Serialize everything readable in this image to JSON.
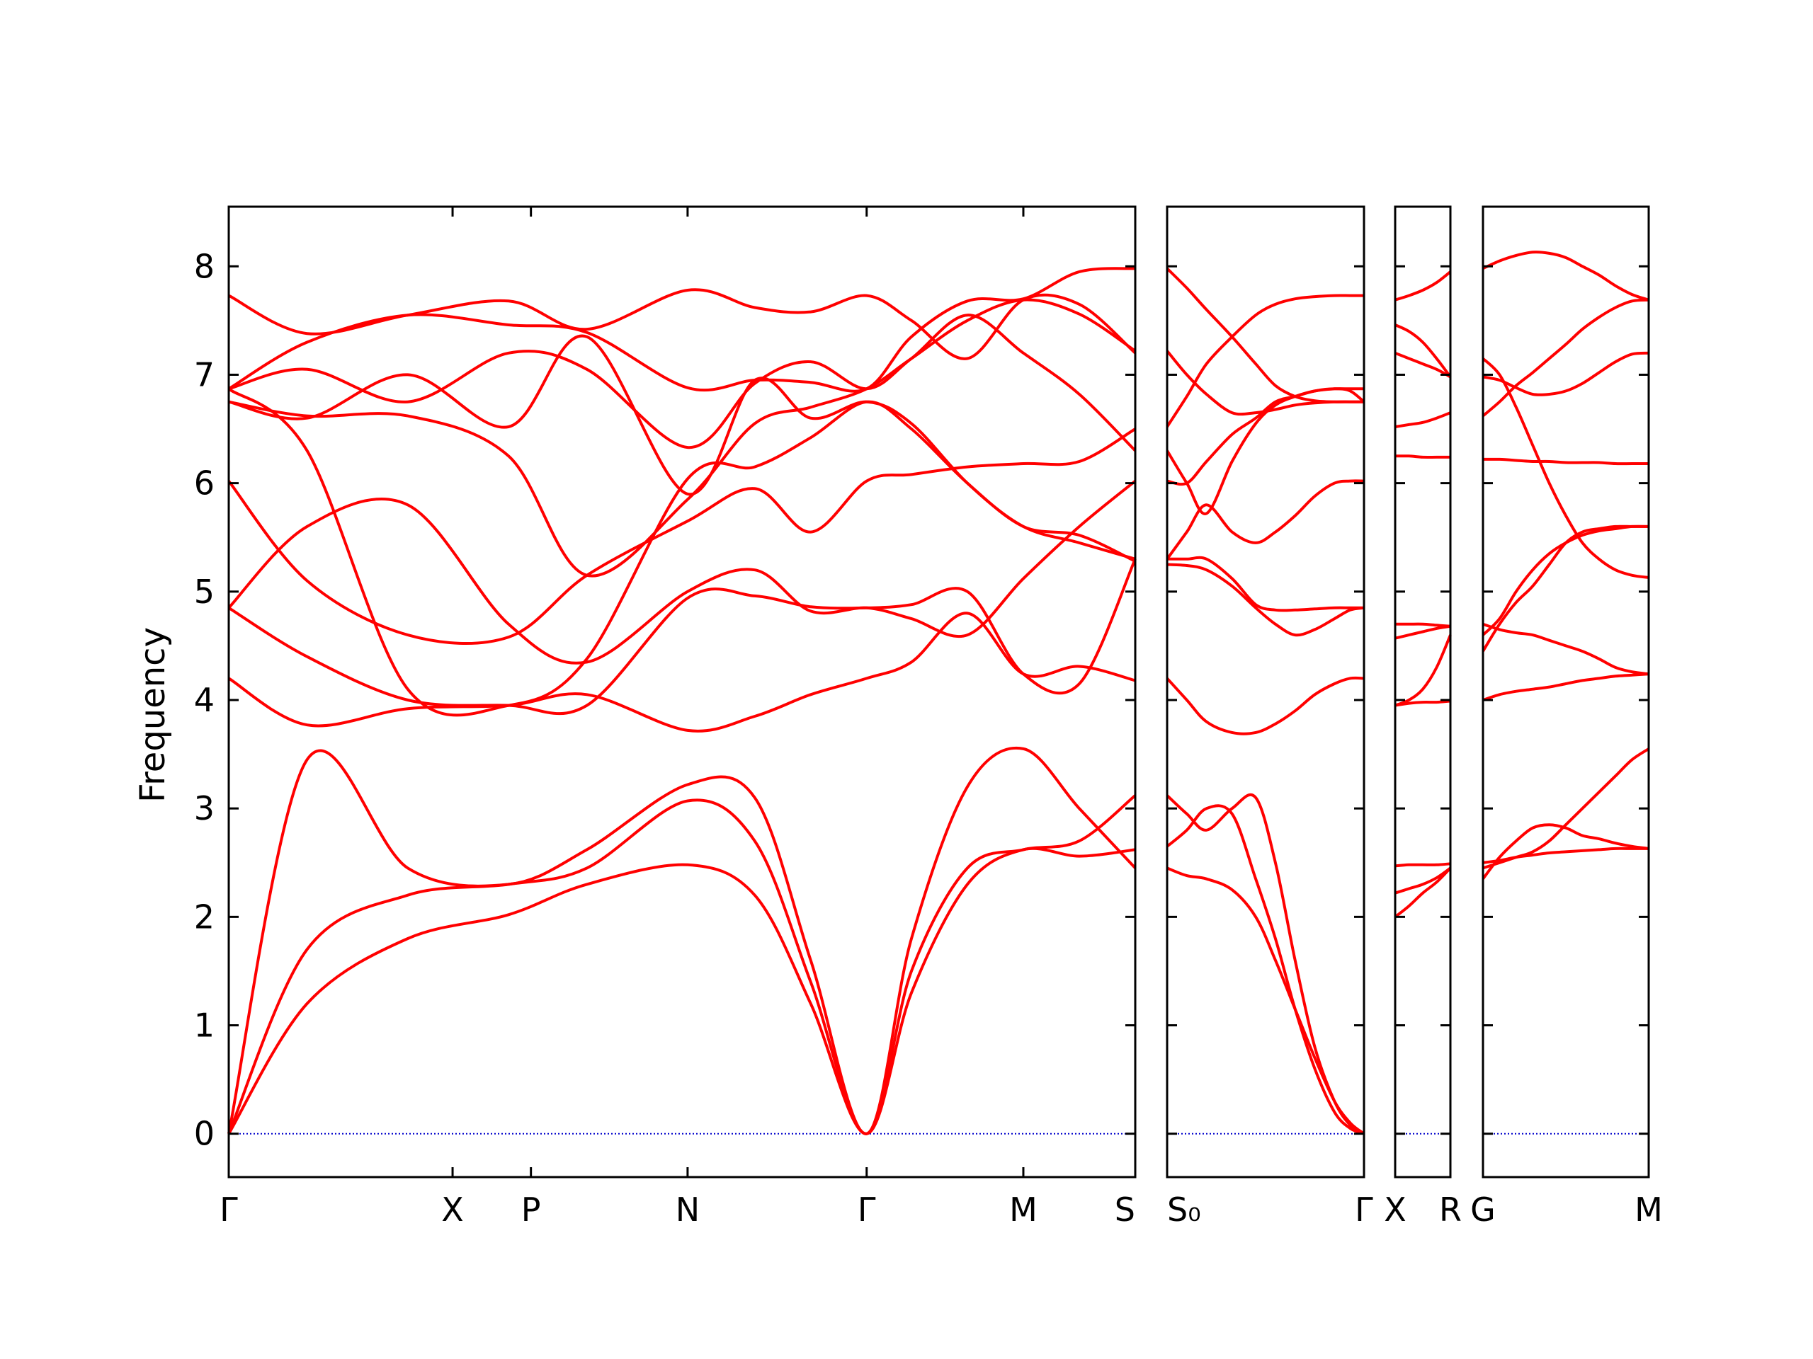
{
  "chart_data": {
    "type": "line",
    "title": "",
    "xlabel": "",
    "ylabel": "Frequency",
    "ylim": [
      -0.4,
      8.55
    ],
    "y_ticks": [
      0,
      1,
      2,
      3,
      4,
      5,
      6,
      7,
      8
    ],
    "grid": false,
    "legend": "none",
    "line_color": "#ff0000",
    "zero_line_color": "#0000cc",
    "panels": [
      {
        "labels": [
          "Γ",
          "X",
          "P",
          "N",
          "Γ",
          "M",
          "S"
        ],
        "label_positions": [
          0,
          1,
          1.35,
          2.05,
          2.85,
          3.55,
          4.05
        ],
        "x_range": [
          0,
          4.05
        ],
        "bands": [
          [
            0,
            0.35,
            0.8,
            1.25,
            1.6,
            2.05,
            2.35,
            2.6,
            2.85,
            3.05,
            3.3,
            3.55,
            3.8,
            4.05
          ],
          [
            0,
            3.45,
            2.45,
            2.3,
            2.62,
            3.22,
            3.1,
            1.6,
            0,
            1.8,
            3.2,
            3.55,
            3.0,
            2.45
          ],
          [
            0,
            1.7,
            2.2,
            2.3,
            2.45,
            3.07,
            2.7,
            1.4,
            0,
            1.5,
            2.45,
            2.62,
            2.7,
            3.12
          ],
          [
            0,
            1.2,
            1.8,
            2.02,
            2.3,
            2.48,
            2.2,
            1.2,
            0,
            1.3,
            2.3,
            2.62,
            2.56,
            2.62
          ],
          [
            4.2,
            3.77,
            3.92,
            3.95,
            4.05,
            3.72,
            3.85,
            4.05,
            4.2,
            4.35,
            4.8,
            4.24,
            4.31,
            4.18
          ],
          [
            4.85,
            4.4,
            4.0,
            3.95,
            3.95,
            4.94,
            4.96,
            4.86,
            4.85,
            4.88,
            5.0,
            4.24,
            4.15,
            5.3
          ],
          [
            4.85,
            5.6,
            5.8,
            4.7,
            4.35,
            5.0,
            5.2,
            4.82,
            4.85,
            4.75,
            4.6,
            5.12,
            5.6,
            6.02
          ],
          [
            6.02,
            5.1,
            4.6,
            4.58,
            5.15,
            5.65,
            5.95,
            5.55,
            6.02,
            6.08,
            6.15,
            6.18,
            6.2,
            6.5
          ],
          [
            6.75,
            6.6,
            7.0,
            6.52,
            7.35,
            5.9,
            6.95,
            6.6,
            6.75,
            6.55,
            6.0,
            5.6,
            5.45,
            5.3
          ],
          [
            6.87,
            6.3,
            4.1,
            3.95,
            4.38,
            6.04,
            6.15,
            6.42,
            6.75,
            6.5,
            6.0,
            5.6,
            5.52,
            5.28
          ],
          [
            6.75,
            6.62,
            6.62,
            6.25,
            5.15,
            5.85,
            6.55,
            6.7,
            6.87,
            7.15,
            7.5,
            7.69,
            7.56,
            7.22
          ],
          [
            6.87,
            7.05,
            6.75,
            7.2,
            7.05,
            6.33,
            6.92,
            7.12,
            6.87,
            7.15,
            7.55,
            7.2,
            6.82,
            6.3
          ],
          [
            6.87,
            7.3,
            7.55,
            7.46,
            7.39,
            6.88,
            6.95,
            6.93,
            6.87,
            7.35,
            7.68,
            7.7,
            7.95,
            7.98
          ],
          [
            7.73,
            7.38,
            7.55,
            7.68,
            7.42,
            7.78,
            7.62,
            7.58,
            7.73,
            7.5,
            7.15,
            7.69,
            7.65,
            7.2
          ]
        ]
      },
      {
        "labels": [
          "S₀",
          "Γ"
        ],
        "label_positions": [
          0,
          1
        ],
        "x_range": [
          0,
          1
        ],
        "bands": [
          [
            0,
            0.1,
            0.2,
            0.33,
            0.45,
            0.55,
            0.65,
            0.75,
            0.85,
            0.93,
            1
          ],
          [
            2.45,
            2.38,
            2.35,
            2.25,
            2.0,
            1.6,
            1.15,
            0.7,
            0.3,
            0.1,
            0
          ],
          [
            2.65,
            2.8,
            3.0,
            2.95,
            2.35,
            1.8,
            1.15,
            0.6,
            0.2,
            0.05,
            0
          ],
          [
            3.12,
            2.95,
            2.8,
            3.0,
            3.1,
            2.5,
            1.6,
            0.8,
            0.3,
            0.08,
            0
          ],
          [
            4.2,
            4.0,
            3.8,
            3.7,
            3.7,
            3.78,
            3.9,
            4.05,
            4.15,
            4.2,
            4.2
          ],
          [
            5.25,
            5.24,
            5.2,
            5.05,
            4.85,
            4.7,
            4.6,
            4.65,
            4.75,
            4.83,
            4.85
          ],
          [
            5.3,
            5.3,
            5.3,
            5.12,
            4.88,
            4.83,
            4.83,
            4.84,
            4.85,
            4.85,
            4.85
          ],
          [
            5.3,
            5.55,
            5.8,
            5.55,
            5.45,
            5.55,
            5.7,
            5.88,
            6.0,
            6.02,
            6.02
          ],
          [
            6.02,
            6.0,
            6.2,
            6.45,
            6.6,
            6.75,
            6.8,
            6.85,
            6.87,
            6.87,
            6.87
          ],
          [
            6.3,
            6.0,
            5.72,
            6.2,
            6.55,
            6.72,
            6.8,
            6.85,
            6.87,
            6.85,
            6.75
          ],
          [
            6.52,
            6.8,
            7.1,
            7.35,
            7.55,
            7.65,
            7.7,
            7.72,
            7.73,
            7.73,
            7.73
          ],
          [
            7.22,
            7.0,
            6.82,
            6.65,
            6.65,
            6.68,
            6.72,
            6.74,
            6.75,
            6.75,
            6.75
          ],
          [
            7.98,
            7.8,
            7.6,
            7.35,
            7.1,
            6.9,
            6.8,
            6.76,
            6.75,
            6.75,
            6.75
          ]
        ]
      },
      {
        "labels": [
          "X",
          "R"
        ],
        "label_positions": [
          0,
          1
        ],
        "x_range": [
          0,
          1
        ],
        "bands": [
          [
            0,
            0.25,
            0.5,
            0.75,
            1
          ],
          [
            2.0,
            2.1,
            2.22,
            2.32,
            2.45
          ],
          [
            2.22,
            2.26,
            2.3,
            2.36,
            2.45
          ],
          [
            2.47,
            2.48,
            2.48,
            2.48,
            2.49
          ],
          [
            3.95,
            3.97,
            3.98,
            3.98,
            3.99
          ],
          [
            3.95,
            4.0,
            4.1,
            4.3,
            4.6
          ],
          [
            4.57,
            4.6,
            4.63,
            4.66,
            4.68
          ],
          [
            4.7,
            4.7,
            4.7,
            4.69,
            4.68
          ],
          [
            6.25,
            6.25,
            6.24,
            6.24,
            6.24
          ],
          [
            6.52,
            6.54,
            6.56,
            6.6,
            6.65
          ],
          [
            7.2,
            7.15,
            7.1,
            7.05,
            6.98
          ],
          [
            7.46,
            7.4,
            7.3,
            7.15,
            6.98
          ],
          [
            7.69,
            7.73,
            7.78,
            7.85,
            7.95
          ]
        ]
      },
      {
        "labels": [
          "G",
          "M"
        ],
        "label_positions": [
          0,
          1
        ],
        "x_range": [
          0,
          1
        ],
        "bands": [
          [
            0,
            0.1,
            0.2,
            0.3,
            0.4,
            0.5,
            0.6,
            0.7,
            0.8,
            0.9,
            1
          ],
          [
            2.35,
            2.55,
            2.7,
            2.82,
            2.85,
            2.82,
            2.75,
            2.72,
            2.68,
            2.65,
            2.63
          ],
          [
            2.45,
            2.5,
            2.55,
            2.6,
            2.7,
            2.85,
            3.0,
            3.15,
            3.3,
            3.45,
            3.55
          ],
          [
            2.5,
            2.52,
            2.55,
            2.57,
            2.59,
            2.6,
            2.61,
            2.62,
            2.63,
            2.63,
            2.63
          ],
          [
            4.0,
            4.05,
            4.08,
            4.1,
            4.12,
            4.15,
            4.18,
            4.2,
            4.22,
            4.23,
            4.24
          ],
          [
            4.7,
            4.65,
            4.62,
            4.6,
            4.55,
            4.5,
            4.45,
            4.38,
            4.3,
            4.26,
            4.24
          ],
          [
            4.6,
            4.75,
            5.0,
            5.2,
            5.35,
            5.45,
            5.52,
            5.56,
            5.58,
            5.6,
            5.6
          ],
          [
            4.45,
            4.7,
            4.9,
            5.05,
            5.25,
            5.45,
            5.55,
            5.58,
            5.6,
            5.6,
            5.6
          ],
          [
            6.22,
            6.22,
            6.21,
            6.2,
            6.2,
            6.19,
            6.19,
            6.19,
            6.18,
            6.18,
            6.18
          ],
          [
            7.15,
            7.0,
            6.7,
            6.35,
            6.0,
            5.7,
            5.45,
            5.3,
            5.2,
            5.15,
            5.13
          ],
          [
            6.98,
            6.95,
            6.88,
            6.82,
            6.82,
            6.85,
            6.92,
            7.02,
            7.12,
            7.19,
            7.2
          ],
          [
            6.62,
            6.75,
            6.9,
            7.02,
            7.15,
            7.28,
            7.42,
            7.53,
            7.62,
            7.68,
            7.69
          ],
          [
            7.98,
            8.05,
            8.1,
            8.13,
            8.12,
            8.08,
            8.0,
            7.92,
            7.82,
            7.74,
            7.69
          ]
        ]
      }
    ]
  }
}
